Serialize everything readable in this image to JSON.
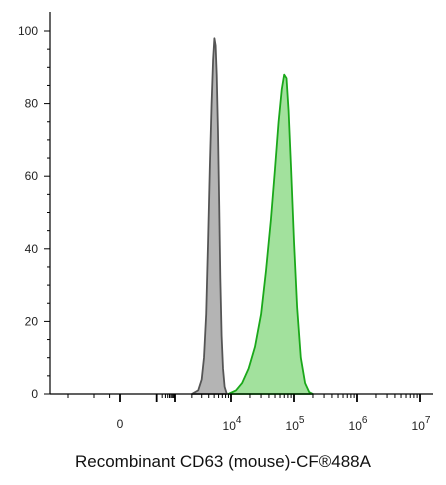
{
  "chart_data": {
    "type": "area",
    "title": "",
    "xlabel": "Recombinant CD63 (mouse)-CF®488A",
    "ylabel": "",
    "ylim": [
      0,
      100
    ],
    "x_scale": "biexponential",
    "x_tick_labels": [
      {
        "value": 0,
        "text": "0"
      },
      {
        "value": 10000,
        "base": "10",
        "exp": "4"
      },
      {
        "value": 100000,
        "base": "10",
        "exp": "5"
      },
      {
        "value": 1000000,
        "base": "10",
        "exp": "6"
      },
      {
        "value": 10000000,
        "base": "10",
        "exp": "7"
      }
    ],
    "y_ticks": [
      0,
      20,
      40,
      60,
      80,
      100
    ],
    "grid": false,
    "series": [
      {
        "fill": "#b4b4b4",
        "stroke": "#555555",
        "points": [
          [
            2000,
            0
          ],
          [
            2600,
            1
          ],
          [
            3000,
            4
          ],
          [
            3300,
            10
          ],
          [
            3600,
            22
          ],
          [
            3900,
            42
          ],
          [
            4200,
            63
          ],
          [
            4500,
            80
          ],
          [
            4800,
            92
          ],
          [
            5050,
            98
          ],
          [
            5300,
            96
          ],
          [
            5550,
            88
          ],
          [
            5850,
            72
          ],
          [
            6150,
            52
          ],
          [
            6450,
            32
          ],
          [
            6800,
            16
          ],
          [
            7200,
            7
          ],
          [
            7700,
            2
          ],
          [
            8400,
            0
          ]
        ]
      },
      {
        "fill": "#9ddf98",
        "stroke": "#1aa81a",
        "points": [
          [
            9000,
            0
          ],
          [
            12000,
            1
          ],
          [
            15000,
            3
          ],
          [
            19000,
            7
          ],
          [
            24000,
            13
          ],
          [
            30000,
            22
          ],
          [
            36000,
            34
          ],
          [
            43000,
            48
          ],
          [
            50000,
            62
          ],
          [
            57000,
            75
          ],
          [
            64000,
            84
          ],
          [
            70000,
            88
          ],
          [
            76000,
            87
          ],
          [
            82000,
            78
          ],
          [
            90000,
            62
          ],
          [
            100000,
            42
          ],
          [
            112000,
            24
          ],
          [
            128000,
            10
          ],
          [
            150000,
            3
          ],
          [
            175000,
            0.5
          ],
          [
            200000,
            0
          ]
        ]
      }
    ]
  }
}
